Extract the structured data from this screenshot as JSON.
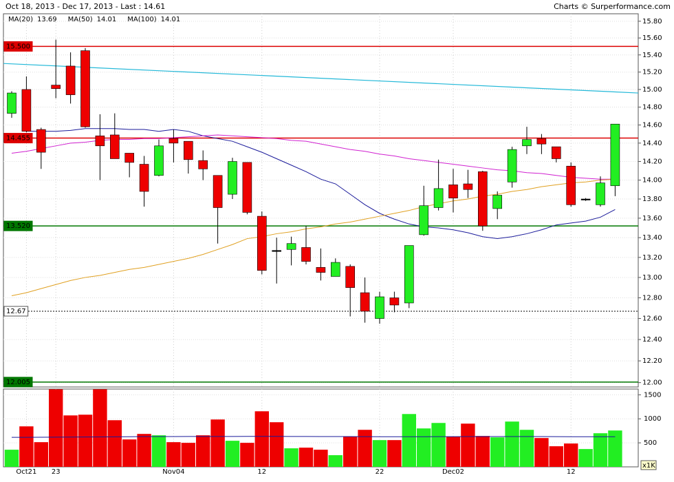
{
  "chart_data": {
    "type": "candlestick",
    "title": "Oct 18, 2013 - Dec 17, 2013 - Last : 14.61",
    "credit": "Charts © Surperformance.com",
    "log_scale": true,
    "ylim": [
      11.96,
      15.89
    ],
    "yticks": [
      {
        "value": 12.0,
        "label": "12.00"
      },
      {
        "value": 12.2,
        "label": "12.20"
      },
      {
        "value": 12.4,
        "label": "12.40"
      },
      {
        "value": 12.6,
        "label": "12.60"
      },
      {
        "value": 12.8,
        "label": "12.80"
      },
      {
        "value": 13.0,
        "label": "13.00"
      },
      {
        "value": 13.2,
        "label": "13.20"
      },
      {
        "value": 13.4,
        "label": "13.40"
      },
      {
        "value": 13.6,
        "label": "13.60"
      },
      {
        "value": 13.8,
        "label": "13.80"
      },
      {
        "value": 14.0,
        "label": "14.00"
      },
      {
        "value": 14.2,
        "label": "14.20"
      },
      {
        "value": 14.4,
        "label": "14.40"
      },
      {
        "value": 14.6,
        "label": "14.60"
      },
      {
        "value": 14.8,
        "label": "14.80"
      },
      {
        "value": 15.0,
        "label": "15.00"
      },
      {
        "value": 15.2,
        "label": "15.20"
      },
      {
        "value": 15.4,
        "label": "15.40"
      },
      {
        "value": 15.6,
        "label": "15.60"
      },
      {
        "value": 15.8,
        "label": "15.80"
      }
    ],
    "categories": [
      null,
      "Oct21",
      null,
      "23",
      null,
      null,
      null,
      null,
      null,
      null,
      null,
      "Nov04",
      null,
      null,
      null,
      null,
      null,
      "12",
      null,
      null,
      null,
      null,
      null,
      null,
      null,
      "22",
      null,
      null,
      null,
      null,
      "Dec02",
      null,
      null,
      null,
      null,
      null,
      null,
      null,
      "12",
      null,
      null,
      null
    ],
    "open": [
      14.73,
      15.0,
      14.55,
      15.05,
      15.27,
      15.45,
      14.48,
      14.49,
      14.29,
      14.17,
      14.05,
      14.45,
      14.42,
      14.21,
      14.05,
      13.85,
      14.19,
      13.62,
      13.27,
      13.28,
      13.3,
      13.1,
      13.01,
      13.11,
      12.85,
      12.6,
      12.8,
      12.75,
      13.43,
      13.71,
      13.95,
      13.96,
      14.09,
      13.7,
      13.98,
      14.37,
      14.45,
      14.36,
      14.15,
      13.8,
      13.74,
      13.94
    ],
    "high": [
      14.98,
      15.15,
      14.57,
      15.58,
      15.43,
      15.48,
      14.72,
      14.73,
      14.29,
      14.26,
      14.44,
      14.55,
      14.42,
      14.32,
      14.05,
      14.24,
      14.19,
      13.67,
      13.4,
      13.41,
      13.52,
      13.29,
      13.19,
      13.13,
      13.0,
      12.86,
      12.86,
      13.32,
      13.94,
      14.22,
      14.12,
      14.11,
      14.1,
      13.88,
      14.36,
      14.58,
      14.5,
      14.36,
      14.19,
      13.81,
      14.04,
      14.61
    ],
    "low": [
      14.68,
      14.52,
      14.12,
      14.9,
      14.84,
      14.57,
      14.0,
      14.23,
      14.03,
      13.72,
      14.04,
      14.19,
      14.07,
      14.0,
      13.34,
      13.8,
      13.64,
      13.03,
      12.94,
      13.12,
      13.13,
      12.97,
      13.01,
      12.62,
      12.56,
      12.55,
      12.66,
      12.7,
      13.42,
      13.68,
      13.66,
      13.81,
      13.47,
      13.59,
      13.92,
      14.28,
      14.28,
      14.19,
      13.72,
      13.78,
      13.72,
      13.83
    ],
    "close": [
      14.96,
      14.53,
      14.3,
      15.01,
      14.94,
      14.58,
      14.37,
      14.23,
      14.19,
      13.88,
      14.37,
      14.4,
      14.22,
      14.12,
      13.71,
      14.2,
      13.66,
      13.07,
      13.27,
      13.34,
      13.16,
      13.05,
      13.15,
      12.9,
      12.67,
      12.81,
      12.73,
      13.32,
      13.73,
      13.91,
      13.81,
      13.9,
      13.52,
      13.84,
      14.33,
      14.44,
      14.39,
      14.23,
      13.74,
      13.8,
      13.97,
      14.61
    ],
    "up_color": "#22ee22",
    "down_color": "#ee0000",
    "flat_color": "#000000",
    "series": [
      {
        "name": "MA(20)",
        "last": 13.69,
        "color": "#1a1a9a",
        "values": [
          null,
          14.53,
          14.53,
          14.53,
          14.54,
          14.56,
          14.56,
          14.56,
          14.55,
          14.55,
          14.53,
          14.55,
          14.53,
          14.48,
          14.45,
          14.42,
          14.36,
          14.3,
          14.23,
          14.16,
          14.09,
          14.01,
          13.96,
          13.85,
          13.74,
          13.65,
          13.59,
          13.54,
          13.51,
          13.5,
          13.48,
          13.45,
          13.41,
          13.39,
          13.41,
          13.44,
          13.48,
          13.53,
          13.55,
          13.57,
          13.61,
          13.69
        ]
      },
      {
        "name": "MA(50)",
        "last": 14.01,
        "color": "#d020d0",
        "values": [
          14.29,
          14.31,
          14.34,
          14.37,
          14.4,
          14.41,
          14.43,
          14.44,
          14.44,
          14.45,
          14.45,
          14.46,
          14.47,
          14.48,
          14.49,
          14.48,
          14.47,
          14.46,
          14.45,
          14.43,
          14.42,
          14.39,
          14.36,
          14.33,
          14.31,
          14.28,
          14.26,
          14.23,
          14.21,
          14.19,
          14.17,
          14.15,
          14.13,
          14.11,
          14.1,
          14.08,
          14.07,
          14.05,
          14.03,
          14.02,
          14.01,
          14.01
        ]
      },
      {
        "name": "MA(100)",
        "last": 14.01,
        "color": "#e0a020",
        "values": [
          12.82,
          12.85,
          12.89,
          12.93,
          12.97,
          13.0,
          13.02,
          13.05,
          13.08,
          13.1,
          13.13,
          13.16,
          13.19,
          13.23,
          13.28,
          13.33,
          13.39,
          13.41,
          13.44,
          13.46,
          13.49,
          13.51,
          13.54,
          13.56,
          13.59,
          13.62,
          13.65,
          13.68,
          13.72,
          13.75,
          13.78,
          13.8,
          13.83,
          13.85,
          13.88,
          13.9,
          13.93,
          13.95,
          13.97,
          13.98,
          14.0,
          14.01
        ]
      }
    ],
    "trendline": {
      "color": "#22b8d8",
      "values": [
        15.3,
        14.96
      ]
    },
    "levels": [
      {
        "value": {
          "value": 15.5,
          "label": "15.500"
        },
        "color": "#dd0000"
      },
      {
        "value": 14.455,
        "color": "#dd0000"
      },
      {
        "value": {
          "value": 13.52,
          "label": "13.520"
        },
        "color": "#007700"
      },
      {
        "value": 12.67,
        "color": "#000000",
        "dashed": true
      },
      {
        "value": 12.005,
        "color": "#007700"
      }
    ],
    "volume": {
      "unit_label": "x1K",
      "ylim": [
        0,
        1620
      ],
      "yticks": [
        500,
        1000,
        1500
      ],
      "values": [
        357,
        843,
        514,
        1614,
        1071,
        1086,
        1614,
        971,
        571,
        686,
        657,
        514,
        500,
        657,
        986,
        543,
        500,
        1157,
        929,
        386,
        400,
        357,
        243,
        629,
        771,
        557,
        557,
        1100,
        800,
        914,
        629,
        900,
        643,
        614,
        943,
        771,
        600,
        429,
        486,
        371,
        700,
        757
      ],
      "colors": [
        "#22ee22",
        "#ee0000",
        "#ee0000",
        "#ee0000",
        "#ee0000",
        "#ee0000",
        "#ee0000",
        "#ee0000",
        "#ee0000",
        "#ee0000",
        "#22ee22",
        "#ee0000",
        "#ee0000",
        "#ee0000",
        "#ee0000",
        "#22ee22",
        "#ee0000",
        "#ee0000",
        "#ee0000",
        "#22ee22",
        "#ee0000",
        "#ee0000",
        "#22ee22",
        "#ee0000",
        "#ee0000",
        "#22ee22",
        "#ee0000",
        "#22ee22",
        "#22ee22",
        "#22ee22",
        "#ee0000",
        "#ee0000",
        "#ee0000",
        "#22ee22",
        "#22ee22",
        "#22ee22",
        "#ee0000",
        "#ee0000",
        "#ee0000",
        "#22ee22",
        "#22ee22",
        "#22ee22"
      ],
      "ma_color": "#1a1a9a",
      "ma": [
        614,
        614,
        616,
        618,
        620,
        622,
        624,
        626,
        628,
        630,
        630,
        631,
        632,
        632,
        633,
        633,
        634,
        634,
        634,
        633,
        632,
        631,
        630,
        630,
        629,
        628,
        627,
        627,
        628,
        629,
        629,
        630,
        630,
        630,
        631,
        631,
        630,
        629,
        628,
        628,
        627,
        627
      ]
    }
  }
}
